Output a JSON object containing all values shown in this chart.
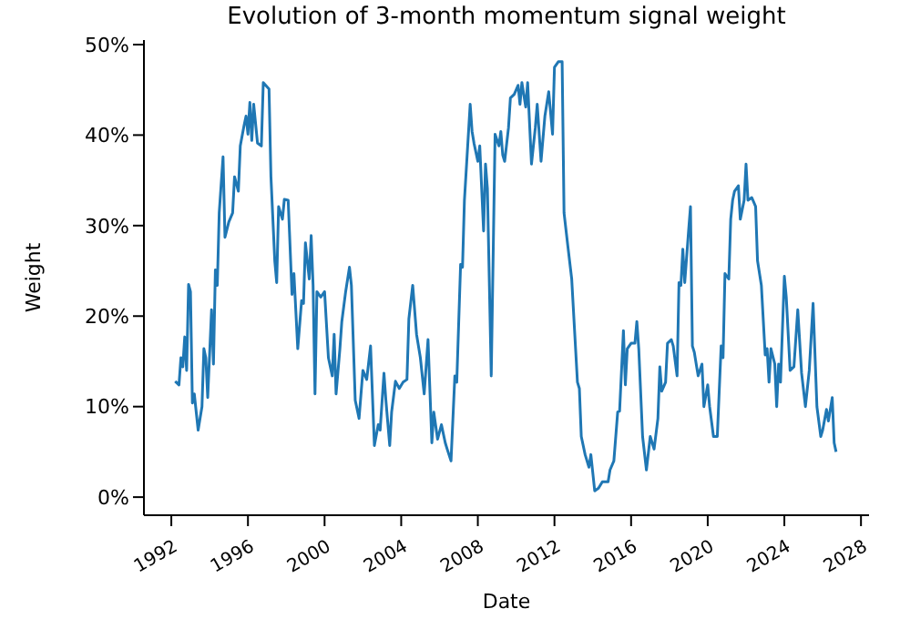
{
  "chart_data": {
    "type": "line",
    "title": "Evolution of 3-month momentum signal weight",
    "xlabel": "Date",
    "ylabel": "Weight",
    "x": [
      1992.2,
      1992.4,
      1992.5,
      1992.6,
      1992.7,
      1992.8,
      1992.9,
      1993.0,
      1993.1,
      1993.2,
      1993.4,
      1993.6,
      1993.7,
      1993.8,
      1993.9,
      1994.1,
      1994.2,
      1994.3,
      1994.4,
      1994.5,
      1994.7,
      1994.8,
      1995.0,
      1995.2,
      1995.3,
      1995.5,
      1995.6,
      1995.8,
      1995.9,
      1996.0,
      1996.1,
      1996.2,
      1996.3,
      1996.5,
      1996.7,
      1996.8,
      1997.1,
      1997.2,
      1997.4,
      1997.5,
      1997.6,
      1997.8,
      1997.9,
      1998.1,
      1998.3,
      1998.4,
      1998.6,
      1998.8,
      1998.9,
      1999.0,
      1999.2,
      1999.3,
      1999.4,
      1999.5,
      1999.6,
      1999.8,
      2000.0,
      2000.2,
      2000.4,
      2000.5,
      2000.6,
      2000.8,
      2000.9,
      2001.1,
      2001.3,
      2001.4,
      2001.6,
      2001.8,
      2002.0,
      2002.2,
      2002.4,
      2002.6,
      2002.8,
      2002.9,
      2003.1,
      2003.2,
      2003.4,
      2003.5,
      2003.7,
      2003.9,
      2004.1,
      2004.3,
      2004.4,
      2004.6,
      2004.8,
      2005.0,
      2005.2,
      2005.4,
      2005.6,
      2005.7,
      2005.9,
      2006.1,
      2006.3,
      2006.4,
      2006.6,
      2006.8,
      2006.9,
      2007.1,
      2007.2,
      2007.3,
      2007.6,
      2007.7,
      2007.8,
      2008.0,
      2008.1,
      2008.3,
      2008.4,
      2008.5,
      2008.7,
      2008.9,
      2009.1,
      2009.2,
      2009.3,
      2009.4,
      2009.6,
      2009.7,
      2009.9,
      2010.1,
      2010.2,
      2010.3,
      2010.5,
      2010.6,
      2010.8,
      2011.0,
      2011.1,
      2011.3,
      2011.5,
      2011.7,
      2011.9,
      2012.0,
      2012.2,
      2012.4,
      2012.5,
      2012.7,
      2012.9,
      2013.2,
      2013.3,
      2013.4,
      2013.6,
      2013.8,
      2013.9,
      2014.1,
      2014.3,
      2014.5,
      2014.8,
      2014.9,
      2015.1,
      2015.3,
      2015.4,
      2015.6,
      2015.7,
      2015.8,
      2016.0,
      2016.2,
      2016.3,
      2016.4,
      2016.6,
      2016.8,
      2017.0,
      2017.2,
      2017.4,
      2017.5,
      2017.6,
      2017.8,
      2017.9,
      2018.1,
      2018.2,
      2018.4,
      2018.5,
      2018.6,
      2018.7,
      2018.8,
      2019.0,
      2019.1,
      2019.2,
      2019.3,
      2019.5,
      2019.7,
      2019.8,
      2020.0,
      2020.1,
      2020.3,
      2020.5,
      2020.7,
      2020.8,
      2020.9,
      2021.1,
      2021.2,
      2021.3,
      2021.4,
      2021.6,
      2021.7,
      2021.9,
      2022.0,
      2022.1,
      2022.3,
      2022.5,
      2022.6,
      2022.8,
      2023.0,
      2023.1,
      2023.2,
      2023.3,
      2023.5,
      2023.6,
      2023.7,
      2023.8,
      2024.0,
      2024.1,
      2024.3,
      2024.5,
      2024.7,
      2024.9,
      2025.1,
      2025.3,
      2025.5,
      2025.7,
      2025.9,
      2026.0,
      2026.2,
      2026.3,
      2026.5,
      2026.6,
      2026.7
    ],
    "series": [
      {
        "color": "#1f77b4",
        "values": [
          12.8,
          12.4,
          15.4,
          14.4,
          17.7,
          14.0,
          23.5,
          22.7,
          10.4,
          11.4,
          7.4,
          10.0,
          16.4,
          15.4,
          11.0,
          20.7,
          14.7,
          25.1,
          23.4,
          31.4,
          37.6,
          28.7,
          30.4,
          31.4,
          35.4,
          33.8,
          38.8,
          41.1,
          42.1,
          40.1,
          43.6,
          39.4,
          43.4,
          39.1,
          38.8,
          45.8,
          45.1,
          35.4,
          26.1,
          23.7,
          32.1,
          30.7,
          32.9,
          32.8,
          22.4,
          24.7,
          16.4,
          21.7,
          21.4,
          28.1,
          24.1,
          28.9,
          23.4,
          11.4,
          22.7,
          22.1,
          22.7,
          15.4,
          13.4,
          18.0,
          11.4,
          16.4,
          19.4,
          22.7,
          25.4,
          23.4,
          10.7,
          8.7,
          14.0,
          13.0,
          16.7,
          5.7,
          8.0,
          7.4,
          13.7,
          10.7,
          5.7,
          9.4,
          12.8,
          12.0,
          12.7,
          13.0,
          19.7,
          23.4,
          18.0,
          15.4,
          11.4,
          17.4,
          6.0,
          9.4,
          6.4,
          8.0,
          6.0,
          5.3,
          4.0,
          13.4,
          12.7,
          25.7,
          25.4,
          32.8,
          43.4,
          40.4,
          39.1,
          37.1,
          38.8,
          29.4,
          36.8,
          34.1,
          13.4,
          40.1,
          38.8,
          40.4,
          37.8,
          37.1,
          40.8,
          44.1,
          44.5,
          45.5,
          43.4,
          45.8,
          43.1,
          45.8,
          36.8,
          40.8,
          43.4,
          37.1,
          42.1,
          44.8,
          40.1,
          47.5,
          48.1,
          48.1,
          31.4,
          27.7,
          24.1,
          12.7,
          12.0,
          6.7,
          4.7,
          3.3,
          4.7,
          0.7,
          1.0,
          1.7,
          1.7,
          3.0,
          4.0,
          9.4,
          9.5,
          18.4,
          12.4,
          16.4,
          17.0,
          17.0,
          19.4,
          16.4,
          6.7,
          3.0,
          6.7,
          5.3,
          8.7,
          14.4,
          11.7,
          12.7,
          17.0,
          17.4,
          16.7,
          13.4,
          23.7,
          23.4,
          27.4,
          23.7,
          29.4,
          32.1,
          16.7,
          16.0,
          13.4,
          14.7,
          10.0,
          12.4,
          10.0,
          6.7,
          6.7,
          16.7,
          15.4,
          24.7,
          24.1,
          30.7,
          32.8,
          33.8,
          34.4,
          30.7,
          32.8,
          36.8,
          32.8,
          33.1,
          32.1,
          26.1,
          23.4,
          15.7,
          16.4,
          12.7,
          16.4,
          14.7,
          10.0,
          14.7,
          12.7,
          24.4,
          22.1,
          14.0,
          14.4,
          20.7,
          13.7,
          10.0,
          14.0,
          21.4,
          10.0,
          6.7,
          7.4,
          9.7,
          8.4,
          11.0,
          6.0,
          5.0
        ]
      }
    ],
    "xlim": [
      1990.57,
      2028.42
    ],
    "xticks": [
      1992,
      1996,
      2000,
      2004,
      2008,
      2012,
      2016,
      2020,
      2024,
      2028
    ],
    "ylim": [
      -2.0,
      50.5
    ],
    "yticks": [
      {
        "value": 0,
        "label": "0%"
      },
      {
        "value": 10,
        "label": "10%"
      },
      {
        "value": 20,
        "label": "20%"
      },
      {
        "value": 30,
        "label": "30%"
      },
      {
        "value": 40,
        "label": "40%"
      },
      {
        "value": 50,
        "label": "50%"
      }
    ],
    "grid": false,
    "legend": false,
    "marker": "none",
    "line_style": "solid"
  }
}
